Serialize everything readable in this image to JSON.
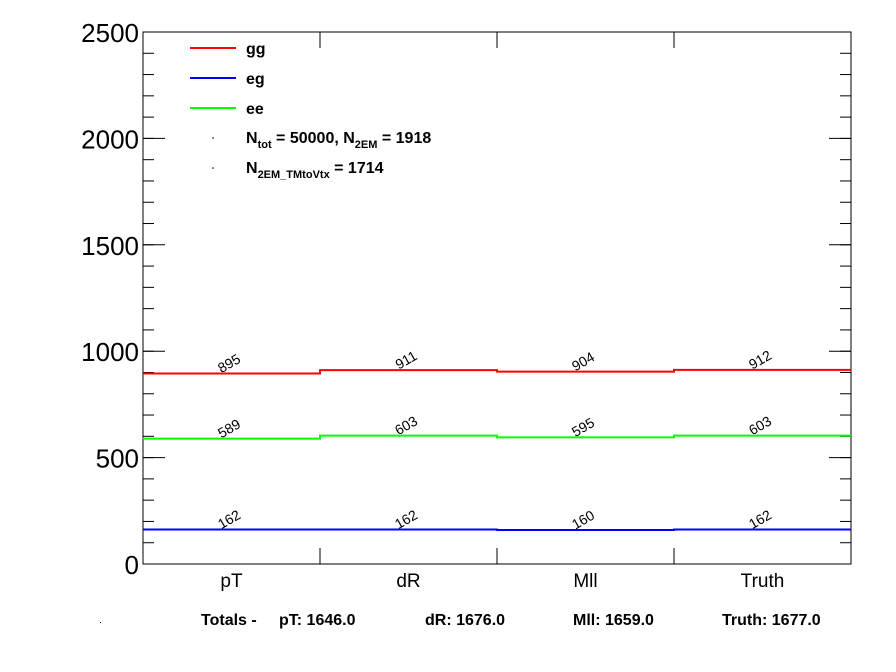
{
  "chart_data": {
    "type": "line",
    "chart_style": "step-histogram",
    "categories": [
      "pT",
      "dR",
      "Mll",
      "Truth"
    ],
    "ylim": [
      0,
      2500
    ],
    "yticks": [
      "0",
      "500",
      "1000",
      "1500",
      "2000",
      "2500"
    ],
    "grid": false,
    "legend_position": "top-left",
    "series": [
      {
        "name": "gg",
        "color": "#ff0000",
        "values": [
          895,
          911,
          904,
          912
        ],
        "labels": [
          "895",
          "911",
          "904",
          "912"
        ]
      },
      {
        "name": "eg",
        "color": "#0000ff",
        "values": [
          162,
          162,
          160,
          162
        ],
        "labels": [
          "162",
          "162",
          "160",
          "162"
        ]
      },
      {
        "name": "ee",
        "color": "#00ff00",
        "values": [
          589,
          603,
          595,
          603
        ],
        "labels": [
          "589",
          "603",
          "595",
          "603"
        ]
      }
    ],
    "annotations": {
      "ntot_sub": "tot",
      "ntot_value": " = 50000, N",
      "n2em_sub": "2EM",
      "n2em_value": " = 1918",
      "n2emvtx_sub": "2EM_TMtoVtx",
      "n2emvtx_value": " = 1714"
    }
  },
  "totals": {
    "prefix": "Totals -",
    "pt": "pT: 1646.0",
    "dr": "dR: 1676.0",
    "mll": "Mll: 1659.0",
    "truth": "Truth: 1677.0"
  }
}
